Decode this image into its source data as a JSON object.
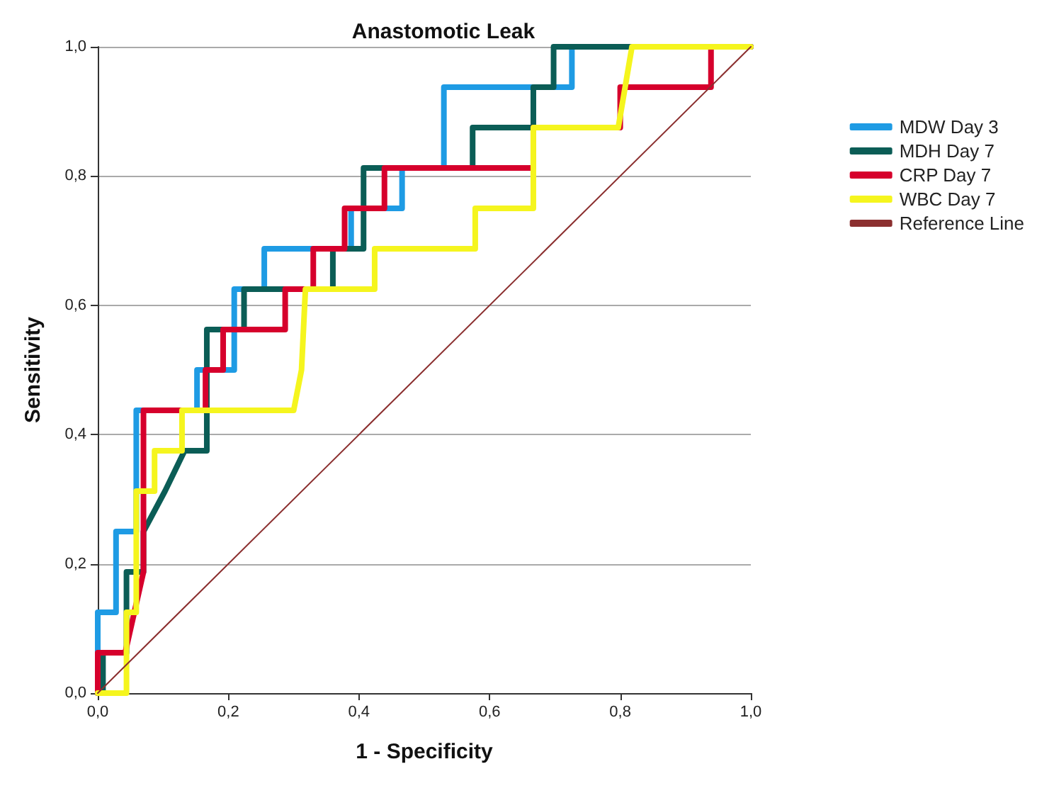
{
  "chart_data": {
    "type": "line",
    "title": "Anastomotic Leak",
    "xlabel": "1 - Specificity",
    "ylabel": "Sensitivity",
    "xlim": [
      0,
      1
    ],
    "ylim": [
      0,
      1
    ],
    "xticks": [
      {
        "value": 0,
        "label": "0,0"
      },
      {
        "value": 0.2,
        "label": "0,2"
      },
      {
        "value": 0.4,
        "label": "0,4"
      },
      {
        "value": 0.6,
        "label": "0,6"
      },
      {
        "value": 0.8,
        "label": "0,8"
      },
      {
        "value": 1,
        "label": "1,0"
      }
    ],
    "yticks": [
      {
        "value": 0,
        "label": "0,0"
      },
      {
        "value": 0.2,
        "label": "0,2"
      },
      {
        "value": 0.4,
        "label": "0,4"
      },
      {
        "value": 0.6,
        "label": "0,6"
      },
      {
        "value": 0.8,
        "label": "0,8"
      },
      {
        "value": 1,
        "label": "1,0"
      }
    ],
    "grid": "y",
    "legend": "right",
    "marker": "none",
    "line_style": "solid",
    "series": [
      {
        "name": "MDW Day 3",
        "color": "#1e9be4",
        "x": [
          0,
          0,
          0.028,
          0.028,
          0.059,
          0.059,
          0.152,
          0.152,
          0.209,
          0.209,
          0.255,
          0.255,
          0.388,
          0.388,
          0.466,
          0.466,
          0.53,
          0.53,
          0.726,
          0.726,
          1
        ],
        "values": [
          0,
          0.125,
          0.125,
          0.25,
          0.25,
          0.4375,
          0.4375,
          0.5,
          0.5,
          0.625,
          0.625,
          0.6875,
          0.6875,
          0.75,
          0.75,
          0.8125,
          0.8125,
          0.9375,
          0.9375,
          1,
          1
        ]
      },
      {
        "name": "MDH Day 7",
        "color": "#0b5d56",
        "x": [
          0,
          0.008,
          0.008,
          0.044,
          0.044,
          0.07,
          0.07,
          0.103,
          0.133,
          0.167,
          0.167,
          0.224,
          0.224,
          0.36,
          0.36,
          0.407,
          0.407,
          0.574,
          0.574,
          0.667,
          0.667,
          0.698,
          0.698,
          1
        ],
        "values": [
          0,
          0,
          0.0625,
          0.0625,
          0.1875,
          0.1875,
          0.25,
          0.3125,
          0.375,
          0.375,
          0.5625,
          0.5625,
          0.625,
          0.625,
          0.6875,
          0.6875,
          0.8125,
          0.8125,
          0.875,
          0.875,
          0.9375,
          0.9375,
          1,
          1
        ]
      },
      {
        "name": "CRP Day 7",
        "color": "#d6002c",
        "x": [
          0,
          0,
          0.042,
          0.07,
          0.07,
          0.165,
          0.165,
          0.192,
          0.192,
          0.287,
          0.287,
          0.33,
          0.33,
          0.378,
          0.378,
          0.439,
          0.439,
          0.667,
          0.667,
          0.8,
          0.8,
          0.939,
          0.939,
          1
        ],
        "values": [
          0,
          0.0625,
          0.0625,
          0.1875,
          0.4375,
          0.4375,
          0.5,
          0.5,
          0.5625,
          0.5625,
          0.625,
          0.625,
          0.6875,
          0.6875,
          0.75,
          0.75,
          0.8125,
          0.8125,
          0.875,
          0.875,
          0.9375,
          0.9375,
          1,
          1
        ]
      },
      {
        "name": "WBC Day 7",
        "color": "#f5f51e",
        "x": [
          0,
          0.044,
          0.044,
          0.059,
          0.059,
          0.087,
          0.087,
          0.129,
          0.129,
          0.3,
          0.312,
          0.318,
          0.424,
          0.424,
          0.578,
          0.578,
          0.667,
          0.667,
          0.797,
          0.818,
          1
        ],
        "values": [
          0,
          0,
          0.125,
          0.125,
          0.3125,
          0.3125,
          0.375,
          0.375,
          0.4375,
          0.4375,
          0.5,
          0.625,
          0.625,
          0.6875,
          0.6875,
          0.75,
          0.75,
          0.875,
          0.875,
          1,
          1
        ]
      },
      {
        "name": "Reference Line",
        "color": "#8b2f2f",
        "x": [
          0,
          1
        ],
        "values": [
          0,
          1
        ]
      }
    ]
  }
}
